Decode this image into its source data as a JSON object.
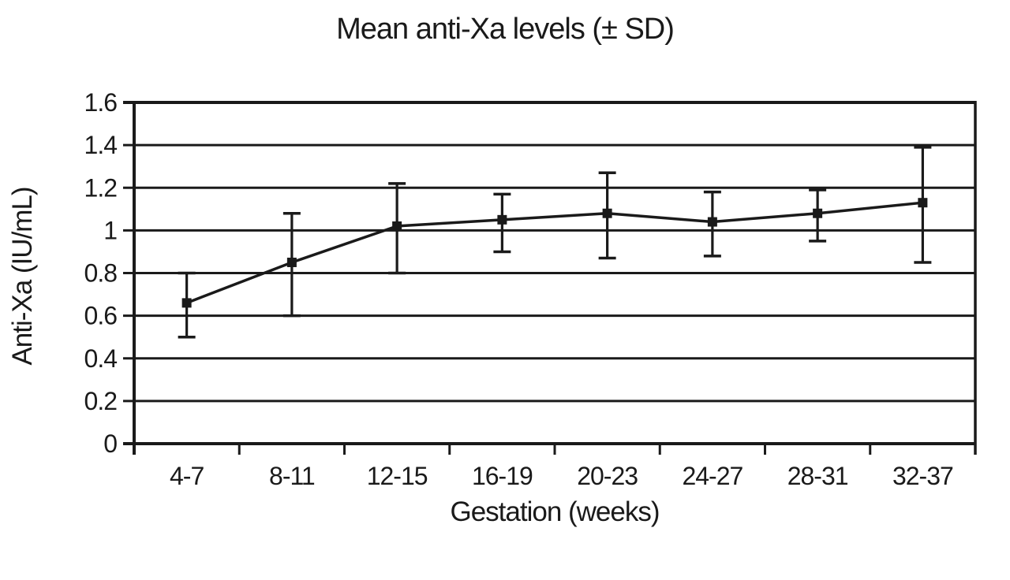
{
  "figure": {
    "title": "Mean anti-Xa levels (± SD)"
  },
  "chart_data": {
    "type": "line",
    "title": "Mean anti-Xa levels (± SD)",
    "xlabel": "Gestation (weeks)",
    "ylabel": "Anti-Xa (IU/mL)",
    "categories": [
      "4-7",
      "8-11",
      "12-15",
      "16-19",
      "20-23",
      "24-27",
      "28-31",
      "32-37"
    ],
    "series": [
      {
        "name": "Mean anti-Xa level",
        "values": [
          0.66,
          0.85,
          1.02,
          1.05,
          1.08,
          1.04,
          1.08,
          1.13
        ],
        "error_upper": [
          0.8,
          1.08,
          1.22,
          1.17,
          1.27,
          1.18,
          1.19,
          1.39
        ],
        "error_lower": [
          0.5,
          0.6,
          0.8,
          0.9,
          0.87,
          0.88,
          0.95,
          0.85
        ]
      }
    ],
    "ylim": [
      0,
      1.6
    ],
    "ytick_step": 0.2,
    "ytick_labels": [
      "0",
      "0.2",
      "0.4",
      "0.6",
      "0.8",
      "1",
      "1.2",
      "1.4",
      "1.6"
    ],
    "grid": "horizontal",
    "legend": "none",
    "marker": "square",
    "error_bars": "sd",
    "line_color": "#1a1a1a",
    "background": "#ffffff"
  }
}
